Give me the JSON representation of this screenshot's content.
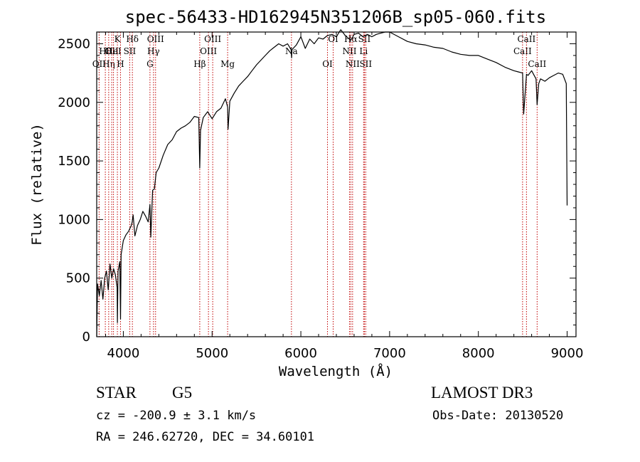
{
  "chart_data": {
    "type": "line",
    "title": "spec-56433-HD162945N351206B_sp05-060.fits",
    "xlabel": "Wavelength (Å)",
    "ylabel": "Flux (relative)",
    "xlim": [
      3700,
      9100
    ],
    "ylim": [
      0,
      2600
    ],
    "xticks": [
      4000,
      5000,
      6000,
      7000,
      8000,
      9000
    ],
    "yticks": [
      0,
      500,
      1000,
      1500,
      2000,
      2500
    ],
    "spectrum": {
      "x": [
        3700,
        3710,
        3730,
        3750,
        3770,
        3790,
        3810,
        3830,
        3850,
        3870,
        3890,
        3910,
        3930,
        3933,
        3940,
        3960,
        3968,
        3975,
        4000,
        4030,
        4060,
        4090,
        4100,
        4110,
        4130,
        4160,
        4190,
        4220,
        4250,
        4280,
        4300,
        4310,
        4330,
        4350,
        4370,
        4400,
        4450,
        4500,
        4550,
        4600,
        4650,
        4700,
        4750,
        4800,
        4850,
        4861,
        4870,
        4900,
        4950,
        5000,
        5050,
        5100,
        5150,
        5175,
        5180,
        5200,
        5250,
        5300,
        5350,
        5400,
        5450,
        5500,
        5550,
        5600,
        5650,
        5700,
        5750,
        5800,
        5850,
        5890,
        5896,
        5900,
        5950,
        6000,
        6050,
        6100,
        6150,
        6200,
        6250,
        6300,
        6350,
        6400,
        6450,
        6500,
        6563,
        6600,
        6650,
        6700,
        6750,
        6800,
        6850,
        6900,
        6950,
        7000,
        7100,
        7200,
        7300,
        7400,
        7500,
        7600,
        7700,
        7800,
        7900,
        8000,
        8100,
        8200,
        8300,
        8400,
        8450,
        8498,
        8510,
        8542,
        8560,
        8600,
        8650,
        8662,
        8680,
        8700,
        8750,
        8800,
        8850,
        8900,
        8950,
        8990,
        9000
      ],
      "y": [
        0,
        450,
        350,
        480,
        320,
        500,
        560,
        400,
        620,
        500,
        580,
        530,
        420,
        120,
        560,
        640,
        150,
        700,
        820,
        870,
        900,
        950,
        980,
        1040,
        860,
        950,
        1000,
        1070,
        1030,
        980,
        1130,
        850,
        1250,
        1260,
        1400,
        1440,
        1550,
        1640,
        1680,
        1750,
        1780,
        1800,
        1830,
        1880,
        1870,
        1440,
        1760,
        1870,
        1920,
        1860,
        1920,
        1950,
        2030,
        1960,
        1770,
        2010,
        2080,
        2140,
        2180,
        2220,
        2270,
        2320,
        2360,
        2400,
        2440,
        2470,
        2500,
        2480,
        2500,
        2450,
        2380,
        2450,
        2490,
        2560,
        2460,
        2540,
        2500,
        2550,
        2540,
        2570,
        2580,
        2560,
        2620,
        2570,
        2530,
        2580,
        2590,
        2560,
        2580,
        2560,
        2580,
        2590,
        2600,
        2600,
        2560,
        2520,
        2500,
        2490,
        2470,
        2460,
        2430,
        2410,
        2400,
        2400,
        2370,
        2340,
        2300,
        2270,
        2260,
        2250,
        1900,
        2240,
        2230,
        2270,
        2200,
        1980,
        2160,
        2200,
        2180,
        2210,
        2230,
        2250,
        2240,
        2160,
        1120
      ]
    },
    "line_markers": [
      {
        "wl": 3727,
        "label": "OII",
        "row": 2
      },
      {
        "wl": 3797,
        "label": "Hθ",
        "row": 1
      },
      {
        "wl": 3835,
        "label": "Hη",
        "row": 2
      },
      {
        "wl": 3869,
        "label": "OII",
        "row": 1
      },
      {
        "wl": 3889,
        "label": "HeI",
        "row": 1
      },
      {
        "wl": 3933,
        "label": "K",
        "row": 0
      },
      {
        "wl": 3968,
        "label": "H",
        "row": 2
      },
      {
        "wl": 4072,
        "label": "SII",
        "row": 1
      },
      {
        "wl": 4102,
        "label": "Hδ",
        "row": 0
      },
      {
        "wl": 4300,
        "label": "G",
        "row": 2
      },
      {
        "wl": 4340,
        "label": "Hγ",
        "row": 1
      },
      {
        "wl": 4363,
        "label": "OIII",
        "row": 0
      },
      {
        "wl": 4861,
        "label": "Hβ",
        "row": 2
      },
      {
        "wl": 4959,
        "label": "OIII",
        "row": 1
      },
      {
        "wl": 5007,
        "label": "OIII",
        "row": 0
      },
      {
        "wl": 5175,
        "label": "Mg",
        "row": 2
      },
      {
        "wl": 5894,
        "label": "Na",
        "row": 1
      },
      {
        "wl": 6300,
        "label": "OI",
        "row": 2
      },
      {
        "wl": 6364,
        "label": "OI",
        "row": 0
      },
      {
        "wl": 6548,
        "label": "NII",
        "row": 1
      },
      {
        "wl": 6563,
        "label": "Hα",
        "row": 0
      },
      {
        "wl": 6583,
        "label": "NII",
        "row": 2
      },
      {
        "wl": 6707,
        "label": "Li",
        "row": 1
      },
      {
        "wl": 6716,
        "label": "SII",
        "row": 0
      },
      {
        "wl": 6731,
        "label": "SII",
        "row": 2
      },
      {
        "wl": 8498,
        "label": "CaII",
        "row": 1
      },
      {
        "wl": 8542,
        "label": "CaII",
        "row": 0
      },
      {
        "wl": 8662,
        "label": "CaII",
        "row": 2
      }
    ]
  },
  "info": {
    "class": "STAR",
    "subclass": "G5",
    "survey": "LAMOST DR3",
    "cz": "cz = -200.9 ± 3.1 km/s",
    "obs_date": "Obs-Date: 20130520",
    "coords": "RA = 246.62720, DEC =  34.60101"
  }
}
